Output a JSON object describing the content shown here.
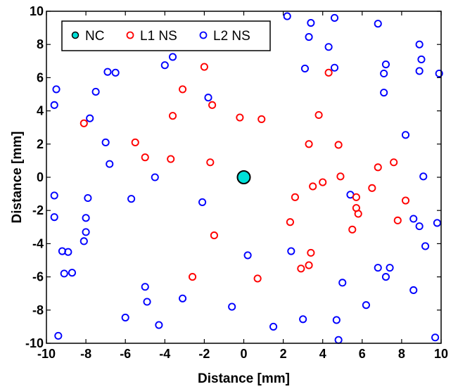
{
  "chart_data": {
    "type": "scatter",
    "xlabel": "Distance [mm]",
    "ylabel": "Distance [mm]",
    "xlim": [
      -10,
      10
    ],
    "ylim": [
      -10,
      10
    ],
    "xticks": [
      -10,
      -8,
      -6,
      -4,
      -2,
      0,
      2,
      4,
      6,
      8,
      10
    ],
    "yticks": [
      -10,
      -8,
      -6,
      -4,
      -2,
      0,
      2,
      4,
      6,
      8,
      10
    ],
    "grid": false,
    "legend_position": "top-left",
    "legend": [
      {
        "label": "NC",
        "series": "NC"
      },
      {
        "label": "L1 NS",
        "series": "L1 NS"
      },
      {
        "label": "L2 NS",
        "series": "L2 NS"
      }
    ],
    "series": [
      {
        "name": "NC",
        "color": "#00e0d8",
        "edge_color": "#000000",
        "marker": "filled-circle",
        "points": [
          [
            0,
            0
          ]
        ]
      },
      {
        "name": "L1 NS",
        "color": "#ff0000",
        "marker": "open-circle",
        "points": [
          [
            -2.0,
            6.65
          ],
          [
            -3.1,
            5.3
          ],
          [
            -1.6,
            4.35
          ],
          [
            -3.6,
            3.7
          ],
          [
            -0.2,
            3.6
          ],
          [
            0.9,
            3.5
          ],
          [
            -8.1,
            3.25
          ],
          [
            -5.5,
            2.1
          ],
          [
            -5.0,
            1.2
          ],
          [
            -3.7,
            1.1
          ],
          [
            -1.7,
            0.9
          ],
          [
            3.3,
            2.0
          ],
          [
            3.8,
            3.75
          ],
          [
            4.3,
            6.3
          ],
          [
            4.8,
            1.95
          ],
          [
            4.9,
            0.05
          ],
          [
            6.8,
            0.6
          ],
          [
            7.6,
            0.9
          ],
          [
            3.5,
            -0.55
          ],
          [
            4.0,
            -0.3
          ],
          [
            6.5,
            -0.65
          ],
          [
            5.7,
            -1.2
          ],
          [
            5.7,
            -1.85
          ],
          [
            5.8,
            -2.2
          ],
          [
            8.2,
            -1.4
          ],
          [
            7.8,
            -2.6
          ],
          [
            2.6,
            -1.2
          ],
          [
            2.35,
            -2.7
          ],
          [
            5.5,
            -3.15
          ],
          [
            -1.5,
            -3.5
          ],
          [
            3.4,
            -4.55
          ],
          [
            3.3,
            -5.3
          ],
          [
            2.9,
            -5.5
          ],
          [
            -2.6,
            -6.0
          ],
          [
            0.7,
            -6.1
          ]
        ]
      },
      {
        "name": "L2 NS",
        "color": "#0000ff",
        "marker": "open-circle",
        "points": [
          [
            -9.5,
            5.3
          ],
          [
            -9.6,
            4.35
          ],
          [
            -6.9,
            6.35
          ],
          [
            -6.5,
            6.3
          ],
          [
            -7.5,
            5.15
          ],
          [
            -7.8,
            3.55
          ],
          [
            -7.0,
            2.1
          ],
          [
            -6.8,
            0.8
          ],
          [
            -4.0,
            6.75
          ],
          [
            -3.6,
            7.25
          ],
          [
            -1.8,
            4.8
          ],
          [
            2.2,
            9.7
          ],
          [
            3.4,
            9.3
          ],
          [
            4.6,
            9.6
          ],
          [
            6.8,
            9.25
          ],
          [
            3.3,
            8.45
          ],
          [
            4.3,
            7.85
          ],
          [
            3.1,
            6.55
          ],
          [
            4.6,
            6.6
          ],
          [
            7.2,
            6.8
          ],
          [
            7.1,
            6.25
          ],
          [
            7.1,
            5.1
          ],
          [
            8.9,
            8.0
          ],
          [
            9.0,
            7.1
          ],
          [
            8.9,
            6.4
          ],
          [
            9.9,
            6.25
          ],
          [
            8.2,
            2.55
          ],
          [
            9.1,
            0.05
          ],
          [
            -9.6,
            -1.1
          ],
          [
            -9.6,
            -2.4
          ],
          [
            -7.9,
            -1.25
          ],
          [
            -8.0,
            -2.45
          ],
          [
            -8.0,
            -3.3
          ],
          [
            -8.1,
            -3.85
          ],
          [
            -5.7,
            -1.3
          ],
          [
            -4.5,
            0.0
          ],
          [
            -2.1,
            -1.5
          ],
          [
            -9.2,
            -4.45
          ],
          [
            -8.9,
            -4.5
          ],
          [
            -9.1,
            -5.8
          ],
          [
            -8.7,
            -5.75
          ],
          [
            -5.0,
            -6.6
          ],
          [
            -4.9,
            -7.5
          ],
          [
            -3.1,
            -7.3
          ],
          [
            -6.0,
            -8.45
          ],
          [
            -4.3,
            -8.9
          ],
          [
            -9.4,
            -9.55
          ],
          [
            -0.6,
            -7.8
          ],
          [
            0.2,
            -4.7
          ],
          [
            1.5,
            -9.0
          ],
          [
            2.4,
            -4.45
          ],
          [
            3.0,
            -8.55
          ],
          [
            5.4,
            -1.05
          ],
          [
            5.0,
            -6.35
          ],
          [
            4.7,
            -8.6
          ],
          [
            4.8,
            -9.8
          ],
          [
            6.2,
            -7.7
          ],
          [
            6.8,
            -5.45
          ],
          [
            7.2,
            -6.0
          ],
          [
            7.4,
            -5.45
          ],
          [
            8.6,
            -2.5
          ],
          [
            8.9,
            -2.95
          ],
          [
            9.8,
            -2.75
          ],
          [
            9.2,
            -4.15
          ],
          [
            8.6,
            -6.8
          ],
          [
            9.7,
            -9.65
          ]
        ]
      }
    ]
  }
}
